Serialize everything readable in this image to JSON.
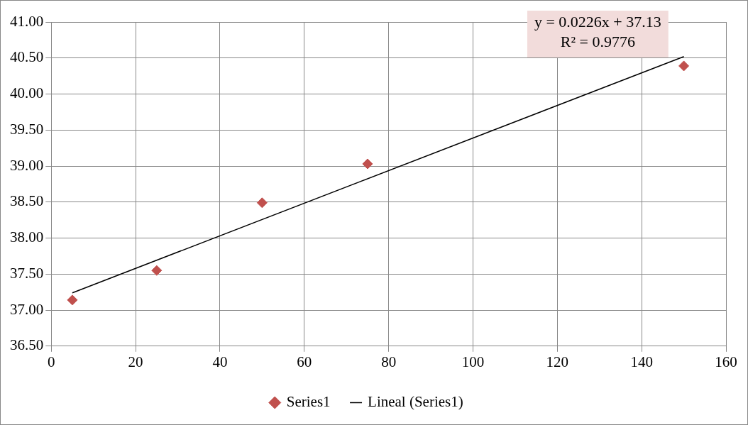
{
  "chart_data": {
    "type": "scatter",
    "series": [
      {
        "name": "Series1",
        "color": "#c0504d",
        "marker": "diamond",
        "x": [
          5,
          25,
          50,
          75,
          150
        ],
        "values": [
          37.14,
          37.55,
          38.49,
          39.03,
          40.39
        ]
      },
      {
        "name": "Lineal (Series1)",
        "type": "line",
        "color": "#000000",
        "marker": "none",
        "x": [
          5,
          150
        ],
        "values": [
          37.24,
          40.52
        ]
      }
    ],
    "xlim": [
      0,
      160
    ],
    "xticks": [
      0,
      20,
      40,
      60,
      80,
      100,
      120,
      140,
      160
    ],
    "ylim": [
      36.5,
      41
    ],
    "yticks": [
      {
        "value": 36.5,
        "label": "36.50"
      },
      {
        "value": 37,
        "label": "37.00"
      },
      {
        "value": 37.5,
        "label": "37.50"
      },
      {
        "value": 38,
        "label": "38.00"
      },
      {
        "value": 38.5,
        "label": "38.50"
      },
      {
        "value": 39,
        "label": "39.00"
      },
      {
        "value": 39.5,
        "label": "39.50"
      },
      {
        "value": 40,
        "label": "40.00"
      },
      {
        "value": 40.5,
        "label": "40.50"
      },
      {
        "value": 41,
        "label": "41.00"
      }
    ],
    "grid": true,
    "legend": "bottom",
    "annotations": [
      "y = 0.0226x + 37.13",
      "R² = 0.9776"
    ]
  }
}
